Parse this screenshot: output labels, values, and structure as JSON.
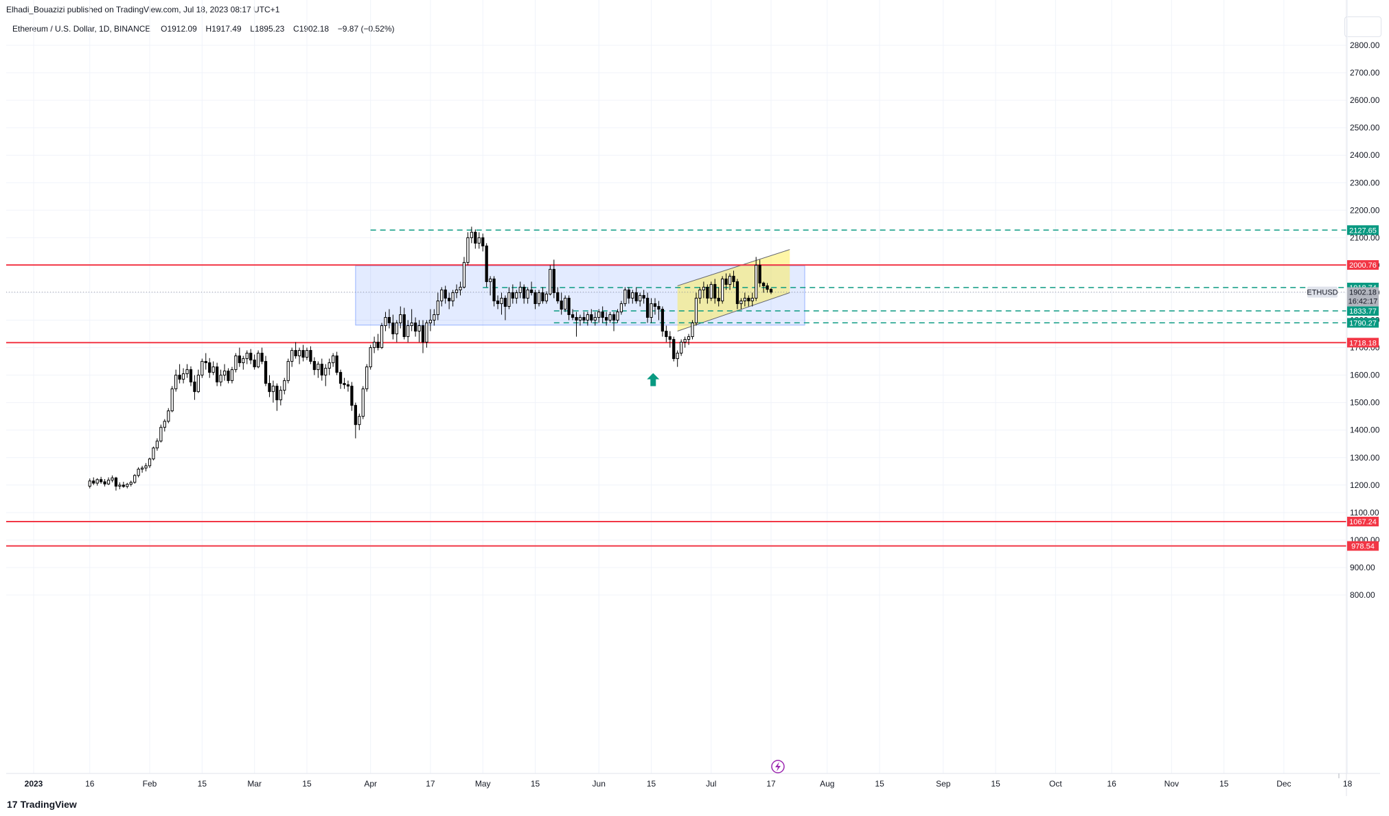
{
  "header": {
    "publisher": "Elhadi_Bouazizi published on TradingView.com, Jul 18, 2023 08:17 UTC+1",
    "symbol": "Ethereum / U.S. Dollar, 1D, BINANCE",
    "o_label": "O",
    "o_value": "1912.09",
    "h_label": "H",
    "h_value": "1917.49",
    "l_label": "L",
    "l_value": "1895.23",
    "c_label": "C",
    "c_value": "1902.18",
    "change": "−9.87 (−0.52%)"
  },
  "footer": {
    "brand": "TradingView",
    "brand_mark": "17"
  },
  "colors": {
    "support_red": "#f23645",
    "teal": "#089981",
    "range_box": "#2962ff",
    "channel_yellow": "#ffeb3b",
    "grid": "#f0f3fa",
    "candle": "#000000"
  },
  "icons": [
    "arrow-up-icon",
    "lightning-icon",
    "tradingview-logo-icon"
  ],
  "chart_data": {
    "type": "candlestick",
    "symbol": "ETHUSD",
    "last_price": 1902.18,
    "last_price_label": "1902.18",
    "countdown": "16:42:17",
    "y_range": [
      800,
      2900
    ],
    "price_ticks": [
      "800.00",
      "900.00",
      "1000.00",
      "1100.00",
      "1200.00",
      "1300.00",
      "1400.00",
      "1500.00",
      "1600.00",
      "1700.00",
      "1800.00",
      "1900.00",
      "2000.00",
      "2100.00",
      "2200.00",
      "2300.00",
      "2400.00",
      "2500.00",
      "2600.00",
      "2700.00",
      "2800.00"
    ],
    "x_ticks": [
      "2023",
      "16",
      "Feb",
      "15",
      "Mar",
      "15",
      "Apr",
      "17",
      "May",
      "15",
      "Jun",
      "15",
      "Jul",
      "17",
      "Aug",
      "15",
      "Sep",
      "15",
      "Oct",
      "16",
      "Nov",
      "15",
      "Dec",
      "18"
    ],
    "horizontal_levels": [
      {
        "value": 2127.65,
        "label": "2127.65",
        "style": "dashed",
        "color": "teal"
      },
      {
        "value": 2000.76,
        "label": "2000.76",
        "style": "solid",
        "color": "red"
      },
      {
        "value": 1918.74,
        "label": "1918.74",
        "style": "dashed",
        "color": "teal"
      },
      {
        "value": 1833.77,
        "label": "1833.77",
        "style": "dashed",
        "color": "teal"
      },
      {
        "value": 1790.27,
        "label": "1790.27",
        "style": "dashed",
        "color": "teal"
      },
      {
        "value": 1718.18,
        "label": "1718.18",
        "style": "solid",
        "color": "red"
      },
      {
        "value": 1067.24,
        "label": "1067.24",
        "style": "solid",
        "color": "red"
      },
      {
        "value": 978.54,
        "label": "978.54",
        "style": "solid",
        "color": "red"
      }
    ],
    "range_box": {
      "start": "2023-03-28",
      "end": "2023-07-26",
      "top": 1998,
      "bottom": 1782
    },
    "rising_channel": {
      "start": "2023-06-22",
      "end": "2023-07-22",
      "upper_start": 1925,
      "upper_end": 2057,
      "lower_start": 1760,
      "lower_end": 1900
    },
    "arrow_marker": {
      "date": "2023-06-15",
      "price": 1625
    },
    "candles": [
      [
        1196,
        1224,
        1188,
        1215
      ],
      [
        1215,
        1228,
        1200,
        1207
      ],
      [
        1207,
        1225,
        1198,
        1220
      ],
      [
        1220,
        1230,
        1205,
        1212
      ],
      [
        1212,
        1222,
        1195,
        1204
      ],
      [
        1204,
        1228,
        1200,
        1218
      ],
      [
        1218,
        1235,
        1210,
        1226
      ],
      [
        1226,
        1230,
        1180,
        1196
      ],
      [
        1196,
        1210,
        1185,
        1200
      ],
      [
        1200,
        1212,
        1190,
        1195
      ],
      [
        1195,
        1208,
        1188,
        1203
      ],
      [
        1203,
        1216,
        1195,
        1210
      ],
      [
        1210,
        1240,
        1205,
        1235
      ],
      [
        1235,
        1265,
        1228,
        1258
      ],
      [
        1258,
        1270,
        1245,
        1262
      ],
      [
        1262,
        1280,
        1250,
        1270
      ],
      [
        1270,
        1300,
        1262,
        1295
      ],
      [
        1295,
        1340,
        1290,
        1335
      ],
      [
        1335,
        1370,
        1325,
        1360
      ],
      [
        1360,
        1420,
        1355,
        1410
      ],
      [
        1410,
        1440,
        1395,
        1432
      ],
      [
        1432,
        1480,
        1425,
        1470
      ],
      [
        1470,
        1560,
        1465,
        1550
      ],
      [
        1550,
        1620,
        1540,
        1600
      ],
      [
        1600,
        1640,
        1570,
        1585
      ],
      [
        1585,
        1625,
        1570,
        1605
      ],
      [
        1605,
        1640,
        1590,
        1620
      ],
      [
        1620,
        1632,
        1560,
        1575
      ],
      [
        1575,
        1600,
        1510,
        1540
      ],
      [
        1540,
        1620,
        1535,
        1600
      ],
      [
        1600,
        1660,
        1590,
        1650
      ],
      [
        1650,
        1680,
        1620,
        1645
      ],
      [
        1645,
        1662,
        1590,
        1610
      ],
      [
        1610,
        1650,
        1600,
        1630
      ],
      [
        1630,
        1645,
        1560,
        1575
      ],
      [
        1575,
        1620,
        1560,
        1600
      ],
      [
        1600,
        1640,
        1580,
        1615
      ],
      [
        1615,
        1625,
        1570,
        1580
      ],
      [
        1580,
        1630,
        1570,
        1620
      ],
      [
        1620,
        1680,
        1610,
        1670
      ],
      [
        1670,
        1700,
        1630,
        1645
      ],
      [
        1645,
        1670,
        1620,
        1660
      ],
      [
        1660,
        1690,
        1640,
        1680
      ],
      [
        1680,
        1695,
        1640,
        1655
      ],
      [
        1655,
        1675,
        1620,
        1630
      ],
      [
        1630,
        1690,
        1625,
        1680
      ],
      [
        1680,
        1700,
        1640,
        1650
      ],
      [
        1650,
        1670,
        1560,
        1570
      ],
      [
        1570,
        1600,
        1520,
        1540
      ],
      [
        1540,
        1580,
        1500,
        1560
      ],
      [
        1560,
        1570,
        1470,
        1510
      ],
      [
        1510,
        1560,
        1490,
        1545
      ],
      [
        1545,
        1590,
        1530,
        1580
      ],
      [
        1580,
        1660,
        1570,
        1650
      ],
      [
        1650,
        1700,
        1630,
        1690
      ],
      [
        1690,
        1720,
        1660,
        1670
      ],
      [
        1670,
        1700,
        1640,
        1690
      ],
      [
        1690,
        1710,
        1650,
        1665
      ],
      [
        1665,
        1700,
        1655,
        1690
      ],
      [
        1690,
        1705,
        1640,
        1650
      ],
      [
        1650,
        1665,
        1600,
        1620
      ],
      [
        1620,
        1650,
        1590,
        1640
      ],
      [
        1640,
        1660,
        1580,
        1600
      ],
      [
        1600,
        1640,
        1560,
        1625
      ],
      [
        1625,
        1660,
        1600,
        1645
      ],
      [
        1645,
        1680,
        1630,
        1670
      ],
      [
        1670,
        1685,
        1600,
        1610
      ],
      [
        1610,
        1620,
        1550,
        1570
      ],
      [
        1570,
        1590,
        1550,
        1565
      ],
      [
        1565,
        1580,
        1540,
        1560
      ],
      [
        1560,
        1575,
        1470,
        1490
      ],
      [
        1490,
        1500,
        1370,
        1420
      ],
      [
        1420,
        1460,
        1400,
        1450
      ],
      [
        1450,
        1560,
        1440,
        1550
      ],
      [
        1550,
        1640,
        1540,
        1630
      ],
      [
        1630,
        1710,
        1620,
        1700
      ],
      [
        1700,
        1740,
        1680,
        1720
      ],
      [
        1720,
        1750,
        1690,
        1700
      ],
      [
        1700,
        1790,
        1695,
        1780
      ],
      [
        1780,
        1830,
        1760,
        1810
      ],
      [
        1810,
        1840,
        1770,
        1790
      ],
      [
        1790,
        1820,
        1730,
        1750
      ],
      [
        1750,
        1800,
        1720,
        1790
      ],
      [
        1790,
        1850,
        1770,
        1820
      ],
      [
        1820,
        1845,
        1730,
        1740
      ],
      [
        1740,
        1800,
        1720,
        1780
      ],
      [
        1780,
        1840,
        1760,
        1790
      ],
      [
        1790,
        1810,
        1740,
        1760
      ],
      [
        1760,
        1800,
        1720,
        1780
      ],
      [
        1780,
        1800,
        1680,
        1720
      ],
      [
        1720,
        1800,
        1700,
        1790
      ],
      [
        1790,
        1840,
        1760,
        1800
      ],
      [
        1800,
        1840,
        1780,
        1820
      ],
      [
        1820,
        1900,
        1800,
        1870
      ],
      [
        1870,
        1920,
        1850,
        1910
      ],
      [
        1910,
        1925,
        1860,
        1880
      ],
      [
        1880,
        1900,
        1840,
        1870
      ],
      [
        1870,
        1910,
        1850,
        1900
      ],
      [
        1900,
        1930,
        1880,
        1910
      ],
      [
        1910,
        1940,
        1890,
        1920
      ],
      [
        1920,
        2030,
        1915,
        2010
      ],
      [
        2010,
        2120,
        2000,
        2100
      ],
      [
        2100,
        2140,
        2080,
        2120
      ],
      [
        2120,
        2130,
        2060,
        2080
      ],
      [
        2080,
        2120,
        2060,
        2100
      ],
      [
        2100,
        2115,
        2050,
        2070
      ],
      [
        2070,
        2080,
        1920,
        1940
      ],
      [
        1940,
        1960,
        1890,
        1950
      ],
      [
        1950,
        1960,
        1850,
        1870
      ],
      [
        1870,
        1890,
        1840,
        1860
      ],
      [
        1860,
        1900,
        1820,
        1880
      ],
      [
        1880,
        1890,
        1800,
        1850
      ],
      [
        1850,
        1920,
        1840,
        1900
      ],
      [
        1900,
        1930,
        1860,
        1880
      ],
      [
        1880,
        1910,
        1860,
        1900
      ],
      [
        1900,
        1940,
        1880,
        1920
      ],
      [
        1920,
        1930,
        1860,
        1880
      ],
      [
        1880,
        1920,
        1860,
        1910
      ],
      [
        1910,
        1940,
        1890,
        1900
      ],
      [
        1900,
        1910,
        1840,
        1860
      ],
      [
        1860,
        1910,
        1850,
        1900
      ],
      [
        1900,
        1920,
        1860,
        1870
      ],
      [
        1870,
        1905,
        1860,
        1895
      ],
      [
        1895,
        2000,
        1890,
        1985
      ],
      [
        1985,
        2020,
        1880,
        1900
      ],
      [
        1900,
        1920,
        1860,
        1870
      ],
      [
        1870,
        1900,
        1820,
        1840
      ],
      [
        1840,
        1890,
        1830,
        1880
      ],
      [
        1880,
        1890,
        1800,
        1820
      ],
      [
        1820,
        1840,
        1800,
        1810
      ],
      [
        1810,
        1830,
        1740,
        1800
      ],
      [
        1800,
        1820,
        1780,
        1810
      ],
      [
        1810,
        1830,
        1790,
        1800
      ],
      [
        1800,
        1830,
        1780,
        1820
      ],
      [
        1820,
        1840,
        1790,
        1800
      ],
      [
        1800,
        1830,
        1780,
        1810
      ],
      [
        1810,
        1840,
        1790,
        1830
      ],
      [
        1830,
        1850,
        1790,
        1810
      ],
      [
        1810,
        1830,
        1780,
        1800
      ],
      [
        1800,
        1830,
        1790,
        1820
      ],
      [
        1820,
        1830,
        1760,
        1800
      ],
      [
        1800,
        1840,
        1790,
        1830
      ],
      [
        1830,
        1870,
        1820,
        1860
      ],
      [
        1860,
        1920,
        1850,
        1910
      ],
      [
        1910,
        1920,
        1860,
        1880
      ],
      [
        1880,
        1910,
        1860,
        1900
      ],
      [
        1900,
        1920,
        1860,
        1870
      ],
      [
        1870,
        1900,
        1850,
        1890
      ],
      [
        1890,
        1910,
        1860,
        1880
      ],
      [
        1880,
        1900,
        1790,
        1810
      ],
      [
        1810,
        1880,
        1790,
        1860
      ],
      [
        1860,
        1880,
        1820,
        1850
      ],
      [
        1850,
        1870,
        1800,
        1840
      ],
      [
        1840,
        1850,
        1740,
        1760
      ],
      [
        1760,
        1780,
        1720,
        1740
      ],
      [
        1740,
        1760,
        1700,
        1730
      ],
      [
        1730,
        1740,
        1650,
        1660
      ],
      [
        1660,
        1690,
        1630,
        1680
      ],
      [
        1680,
        1730,
        1670,
        1720
      ],
      [
        1720,
        1740,
        1700,
        1730
      ],
      [
        1730,
        1750,
        1710,
        1740
      ],
      [
        1740,
        1800,
        1730,
        1790
      ],
      [
        1790,
        1900,
        1780,
        1880
      ],
      [
        1880,
        1920,
        1860,
        1910
      ],
      [
        1910,
        1940,
        1880,
        1920
      ],
      [
        1920,
        1930,
        1860,
        1880
      ],
      [
        1880,
        1940,
        1870,
        1930
      ],
      [
        1930,
        1950,
        1860,
        1880
      ],
      [
        1880,
        1920,
        1850,
        1870
      ],
      [
        1870,
        1960,
        1860,
        1950
      ],
      [
        1950,
        1970,
        1910,
        1930
      ],
      [
        1930,
        1970,
        1910,
        1960
      ],
      [
        1960,
        1980,
        1920,
        1940
      ],
      [
        1940,
        1950,
        1840,
        1860
      ],
      [
        1860,
        1880,
        1840,
        1870
      ],
      [
        1870,
        1900,
        1850,
        1880
      ],
      [
        1880,
        1890,
        1850,
        1870
      ],
      [
        1870,
        1900,
        1850,
        1880
      ],
      [
        1880,
        2030,
        1870,
        2000
      ],
      [
        2000,
        2020,
        1920,
        1935
      ],
      [
        1935,
        1940,
        1900,
        1925
      ],
      [
        1925,
        1935,
        1900,
        1912
      ],
      [
        1912,
        1917,
        1895,
        1902
      ]
    ]
  }
}
